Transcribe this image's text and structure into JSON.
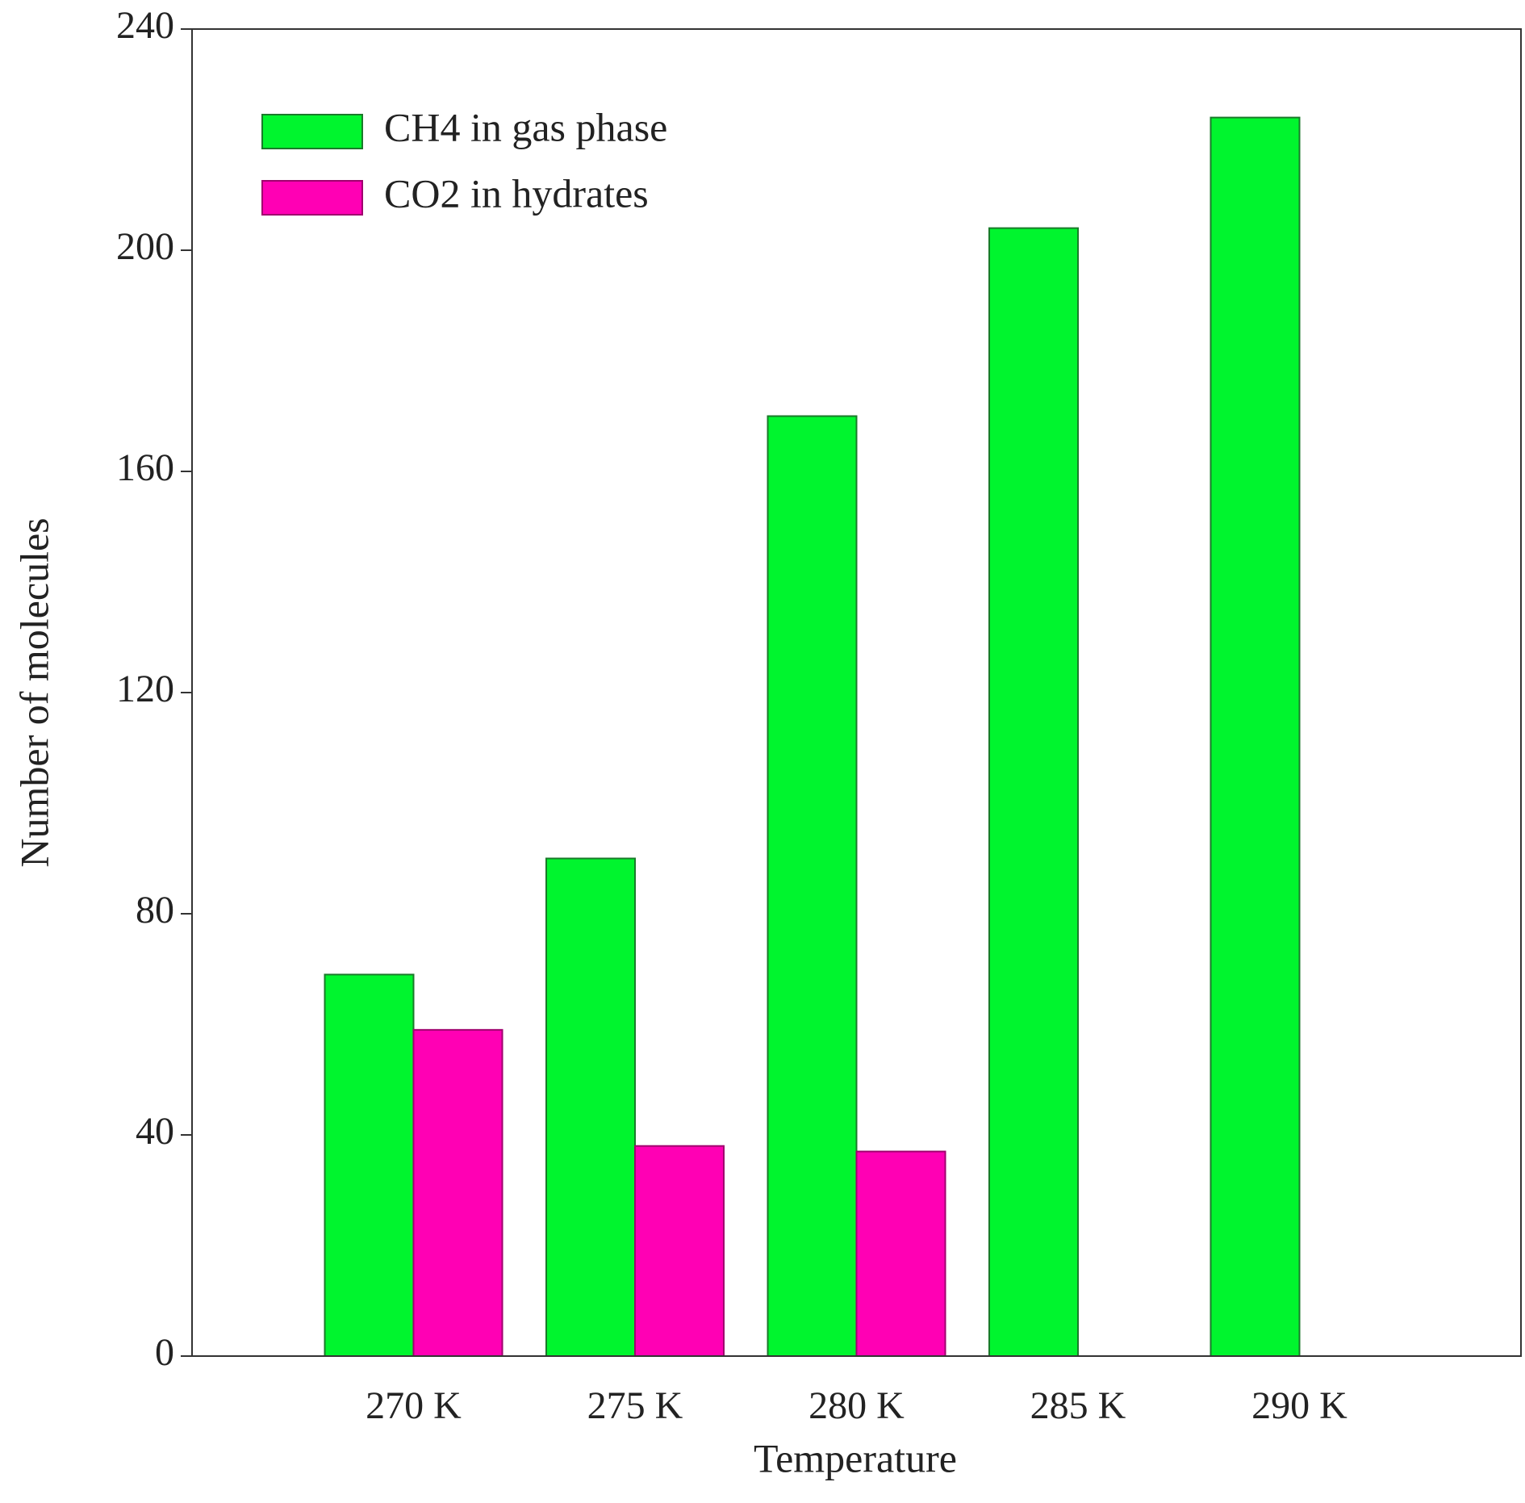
{
  "chart_data": {
    "type": "bar",
    "x_label": "Temperature",
    "y_label": "Number of molecules",
    "categories": [
      "270 K",
      "275 K",
      "280 K",
      "285 K",
      "290 K"
    ],
    "series": [
      {
        "name": "CH4 in gas phase",
        "color": "#00f52e",
        "values": [
          69,
          90,
          170,
          204,
          224
        ]
      },
      {
        "name": "CO2 in hydrates",
        "color": "#ff00b4",
        "values": [
          59,
          38,
          37,
          0,
          0
        ]
      }
    ],
    "ylim": [
      0,
      240
    ],
    "yticks": [
      0,
      40,
      80,
      120,
      160,
      200,
      240
    ],
    "grid": false,
    "legend": "upper left"
  }
}
